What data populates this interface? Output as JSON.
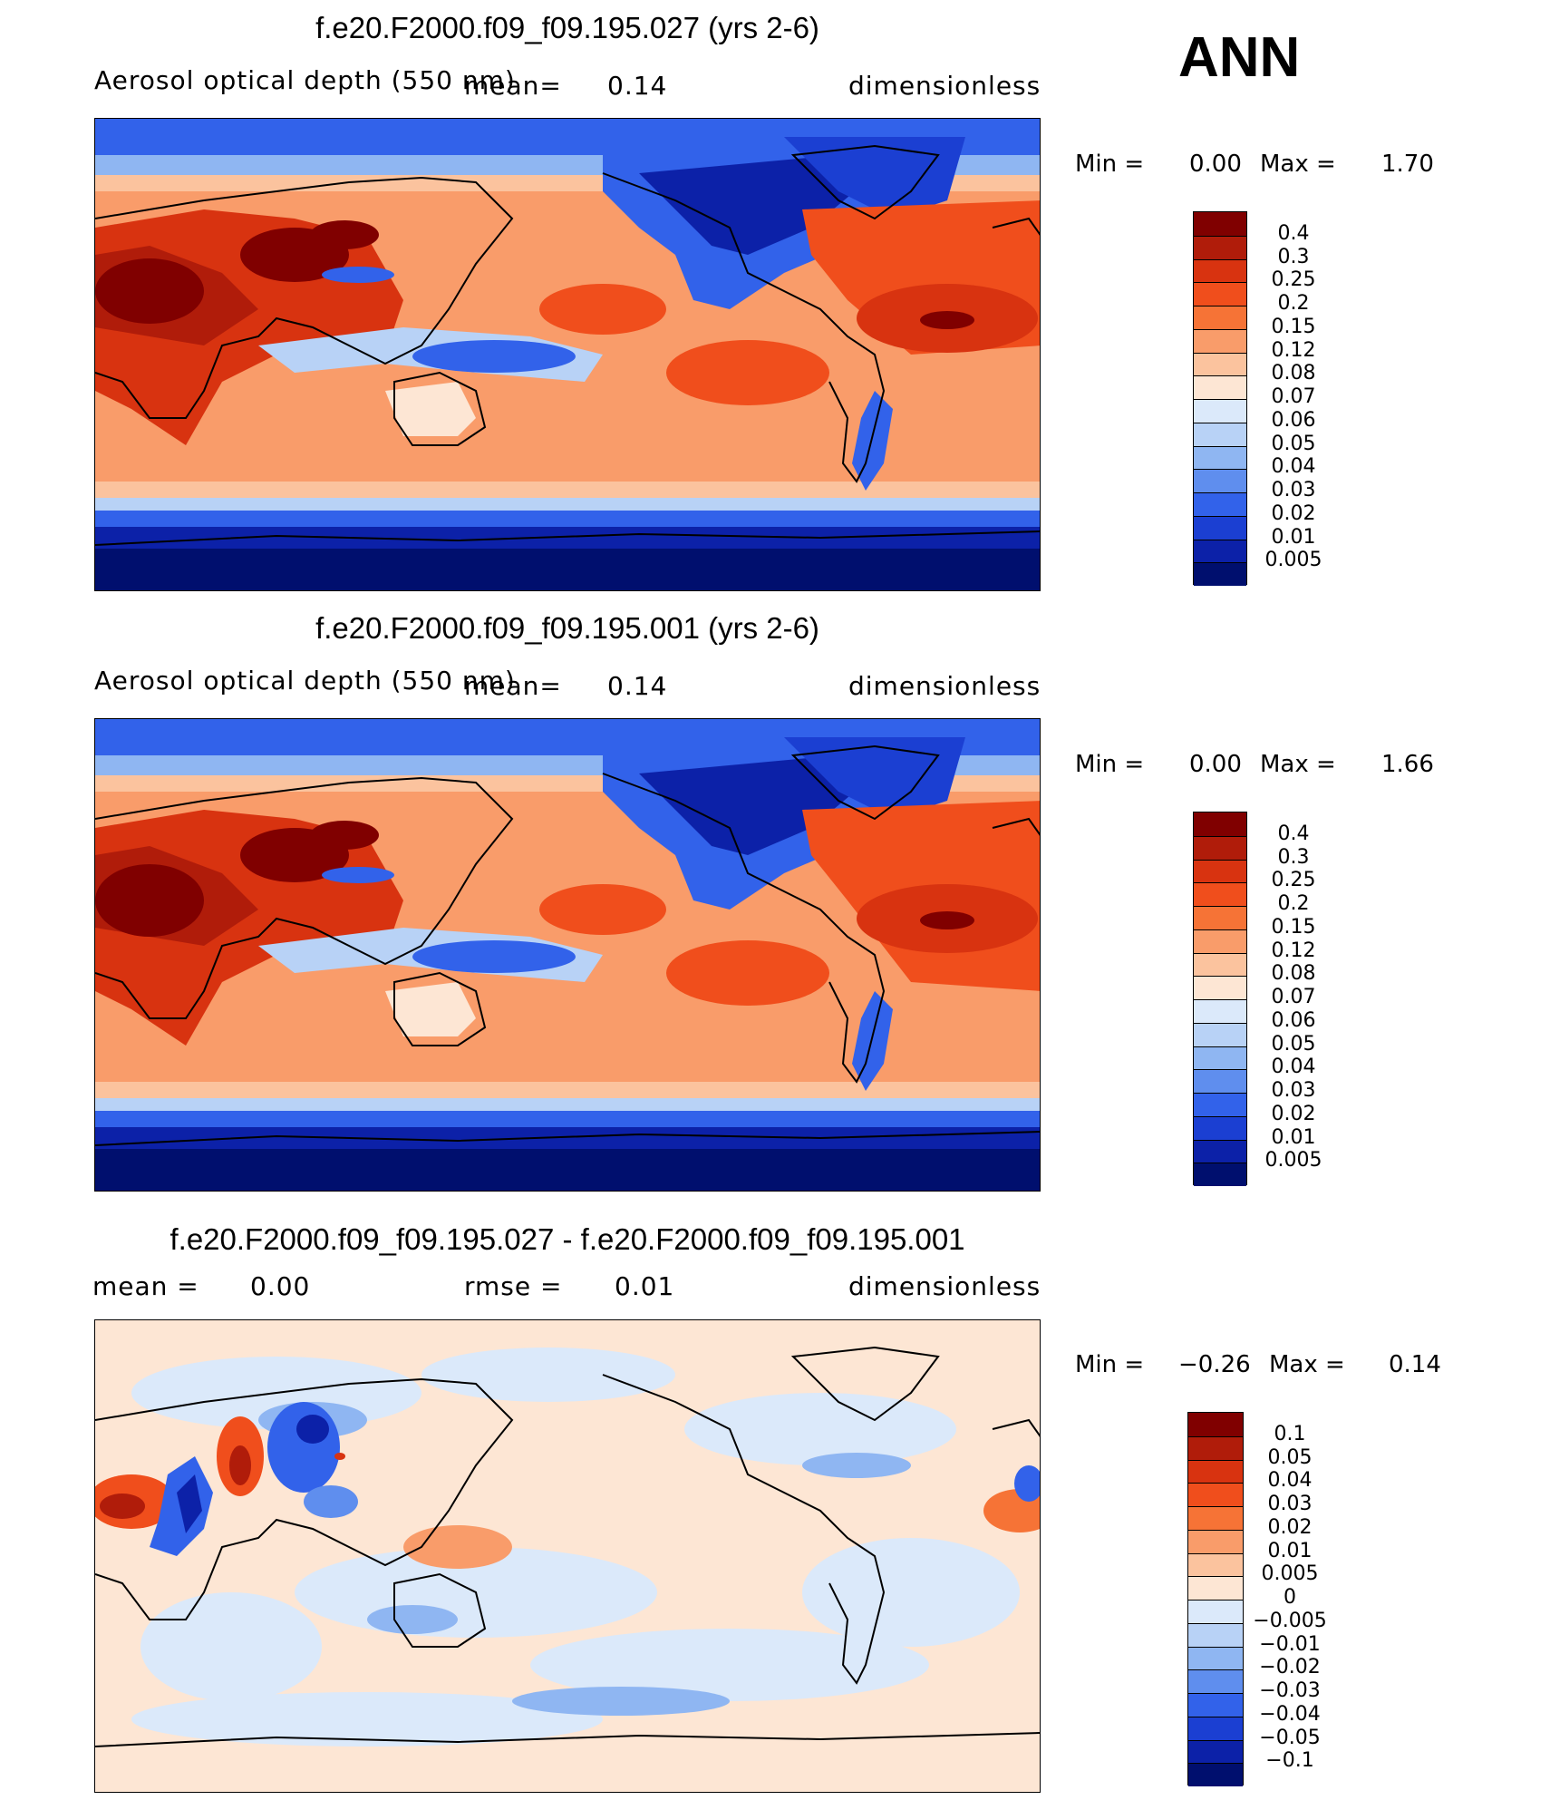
{
  "season": "ANN",
  "panels": [
    {
      "title": "f.e20.F2000.f09_f09.195.027 (yrs 2-6)",
      "variable": "Aerosol optical depth (550 nm)",
      "mean_label": "mean=",
      "mean_value": "0.14",
      "units": "dimensionless",
      "min_label": "Min =",
      "min_value": "0.00",
      "max_label": "Max =",
      "max_value": "1.70",
      "colorbar_labels": [
        "0.4",
        "0.3",
        "0.25",
        "0.2",
        "0.15",
        "0.12",
        "0.08",
        "0.07",
        "0.06",
        "0.05",
        "0.04",
        "0.03",
        "0.02",
        "0.01",
        "0.005"
      ],
      "colorbar_colors": [
        "#800000",
        "#b01c0a",
        "#d83310",
        "#f04e1c",
        "#f67336",
        "#f99c6a",
        "#fbc39e",
        "#fde6d4",
        "#dbe9fa",
        "#b8d2f6",
        "#8fb6f2",
        "#5f8eee",
        "#3262ea",
        "#1b3fd2",
        "#0c21a8",
        "#000f6e"
      ]
    },
    {
      "title": "f.e20.F2000.f09_f09.195.001 (yrs 2-6)",
      "variable": "Aerosol optical depth (550 nm)",
      "mean_label": "mean=",
      "mean_value": "0.14",
      "units": "dimensionless",
      "min_label": "Min =",
      "min_value": "0.00",
      "max_label": "Max =",
      "max_value": "1.66",
      "colorbar_labels": [
        "0.4",
        "0.3",
        "0.25",
        "0.2",
        "0.15",
        "0.12",
        "0.08",
        "0.07",
        "0.06",
        "0.05",
        "0.04",
        "0.03",
        "0.02",
        "0.01",
        "0.005"
      ],
      "colorbar_colors": [
        "#800000",
        "#b01c0a",
        "#d83310",
        "#f04e1c",
        "#f67336",
        "#f99c6a",
        "#fbc39e",
        "#fde6d4",
        "#dbe9fa",
        "#b8d2f6",
        "#8fb6f2",
        "#5f8eee",
        "#3262ea",
        "#1b3fd2",
        "#0c21a8",
        "#000f6e"
      ]
    },
    {
      "title": "f.e20.F2000.f09_f09.195.027 - f.e20.F2000.f09_f09.195.001",
      "mean_label": "mean =",
      "mean_value": "0.00",
      "rmse_label": "rmse =",
      "rmse_value": "0.01",
      "units": "dimensionless",
      "min_label": "Min =",
      "min_value": "−0.26",
      "max_label": "Max =",
      "max_value": "0.14",
      "colorbar_labels": [
        "0.1",
        "0.05",
        "0.04",
        "0.03",
        "0.02",
        "0.01",
        "0.005",
        "0",
        "−0.005",
        "−0.01",
        "−0.02",
        "−0.03",
        "−0.04",
        "−0.05",
        "−0.1"
      ],
      "colorbar_colors": [
        "#800000",
        "#b01c0a",
        "#d83310",
        "#f04e1c",
        "#f67336",
        "#f99c6a",
        "#fbc39e",
        "#fde6d4",
        "#dbe9fa",
        "#b8d2f6",
        "#8fb6f2",
        "#5f8eee",
        "#3262ea",
        "#1b3fd2",
        "#0c21a8",
        "#000f6e"
      ]
    }
  ]
}
